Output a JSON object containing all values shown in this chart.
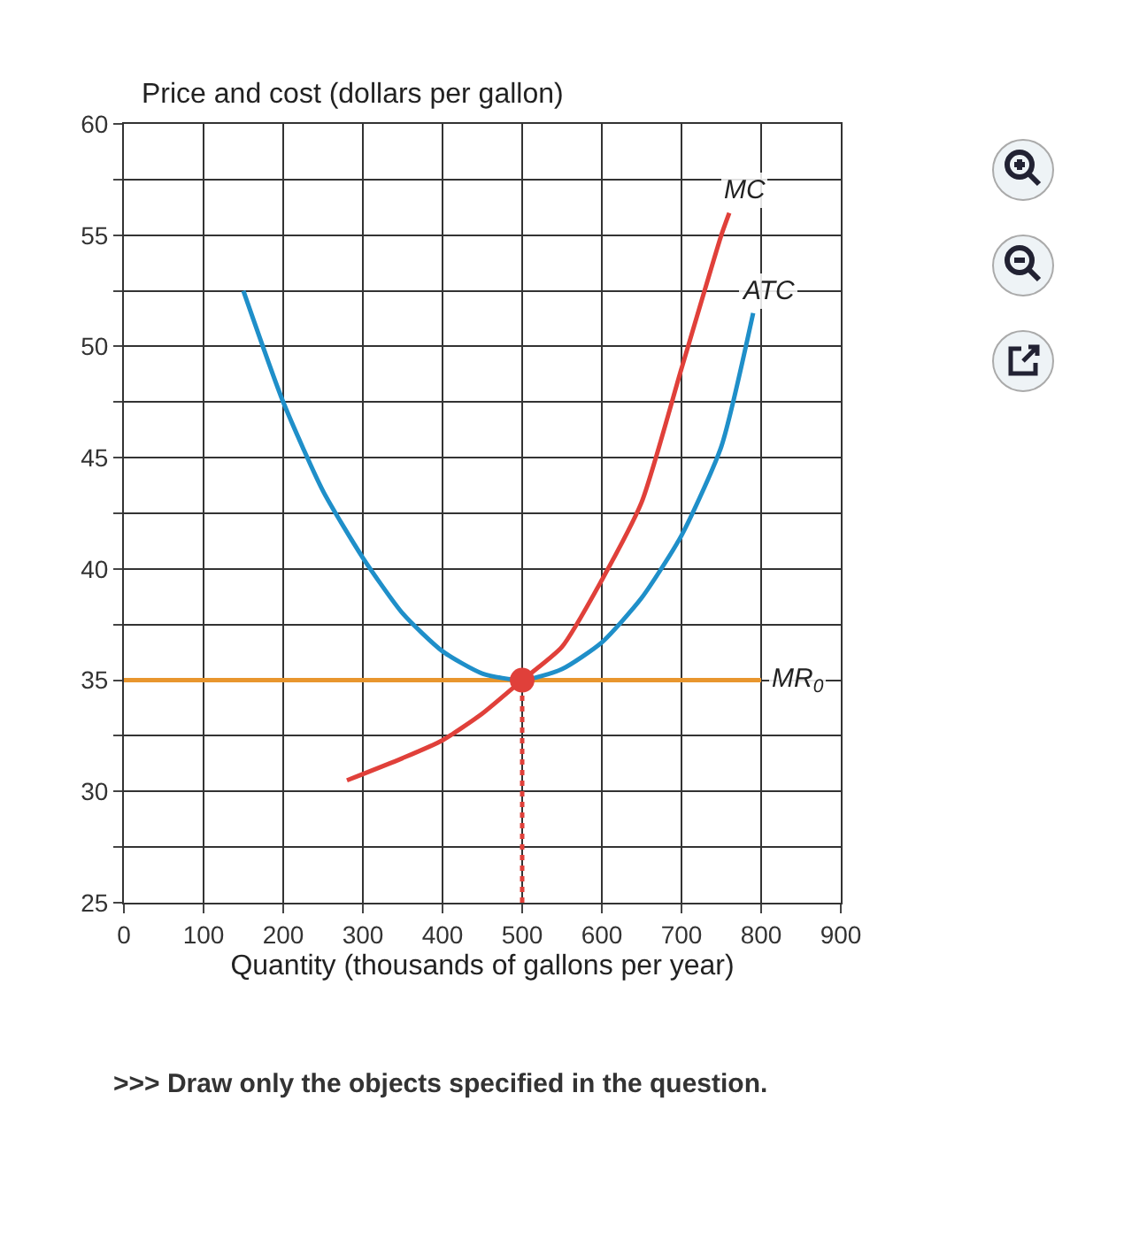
{
  "chart_data": {
    "type": "line",
    "ylabel": "Price and cost (dollars per gallon)",
    "xlabel": "Quantity (thousands of gallons per year)",
    "xlim": [
      0,
      900
    ],
    "xticks": [
      0,
      100,
      200,
      300,
      400,
      500,
      600,
      700,
      800,
      900
    ],
    "ylim": [
      25,
      60
    ],
    "yticks": [
      25,
      {
        "value": 27.5,
        "label": null
      },
      30,
      {
        "value": 32.5,
        "label": null
      },
      35,
      {
        "value": 37.5,
        "label": null
      },
      40,
      {
        "value": 42.5,
        "label": null
      },
      45,
      {
        "value": 47.5,
        "label": null
      },
      50,
      {
        "value": 52.5,
        "label": null
      },
      55,
      {
        "value": 57.5,
        "label": null
      },
      60
    ],
    "grid": true,
    "legend": false,
    "marker": "none",
    "line_style": "solid",
    "series": [
      {
        "name": "MR$_{0}$",
        "color": "#e8962e",
        "x": [
          0,
          800
        ],
        "values": [
          35,
          35
        ]
      },
      {
        "name": "ATC",
        "color": "#1f8fc9",
        "x": [
          150,
          200,
          250,
          300,
          350,
          400,
          450,
          500,
          550,
          600,
          650,
          700,
          750,
          790
        ],
        "values": [
          52.5,
          47.5,
          43.5,
          40.5,
          38,
          36.3,
          35.3,
          35,
          35.5,
          36.7,
          38.7,
          41.5,
          45.5,
          51.5
        ]
      },
      {
        "name": "MC",
        "color": "#e0403a",
        "x": [
          280,
          350,
          400,
          450,
          500,
          550,
          600,
          650,
          700,
          750,
          760
        ],
        "values": [
          30.5,
          31.5,
          32.3,
          33.5,
          35,
          36.5,
          39.5,
          43,
          49,
          55,
          56
        ]
      },
      {
        "color": "#e0403a",
        "x": [
          500,
          500
        ],
        "values": [
          25,
          35
        ],
        "line_style": "dotted"
      },
      {
        "type": "scatter",
        "color": "#e0403a",
        "x": [
          500
        ],
        "values": [
          35
        ],
        "marker": "circle"
      }
    ],
    "annotations": [
      ">>> Draw only the objects specified in the question."
    ]
  }
}
